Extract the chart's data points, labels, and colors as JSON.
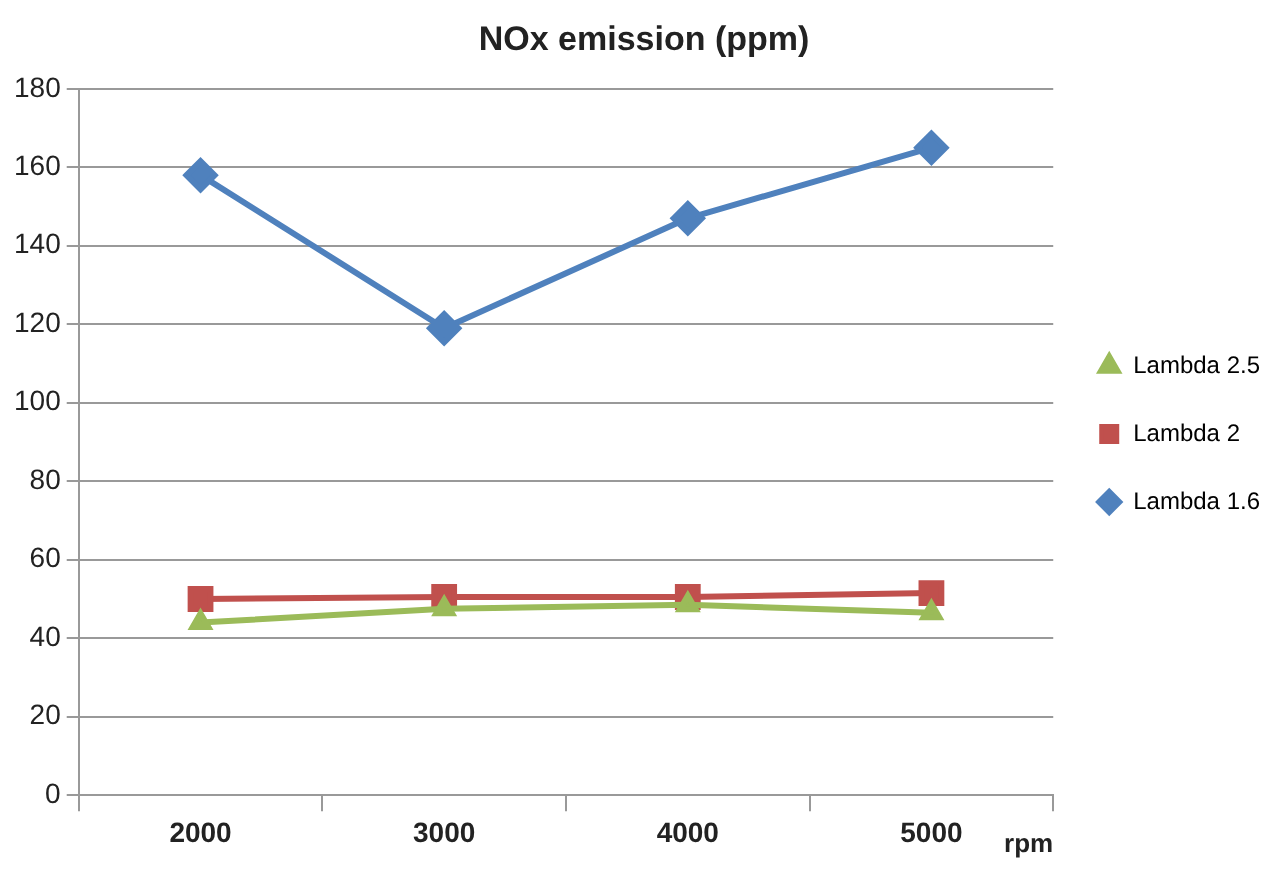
{
  "chart_data": {
    "type": "line",
    "title": "NOx emission (ppm)",
    "xlabel": "rpm",
    "categories": [
      "2000",
      "3000",
      "4000",
      "5000"
    ],
    "series": [
      {
        "name": "Lambda 2.5",
        "color": "#9bbb59",
        "marker": "triangle",
        "values": [
          44,
          47.5,
          48.5,
          46.5
        ]
      },
      {
        "name": "Lambda 2",
        "color": "#c0504d",
        "marker": "square",
        "values": [
          50,
          50.5,
          50.5,
          51.5
        ]
      },
      {
        "name": "Lambda 1.6",
        "color": "#4f81bd",
        "marker": "diamond",
        "values": [
          158,
          119,
          147,
          165
        ]
      }
    ],
    "ylim": [
      0,
      180
    ],
    "yticks": [
      0,
      20,
      40,
      60,
      80,
      100,
      120,
      140,
      160,
      180
    ],
    "grid": "y",
    "legend": "right",
    "line_style": "solid"
  }
}
